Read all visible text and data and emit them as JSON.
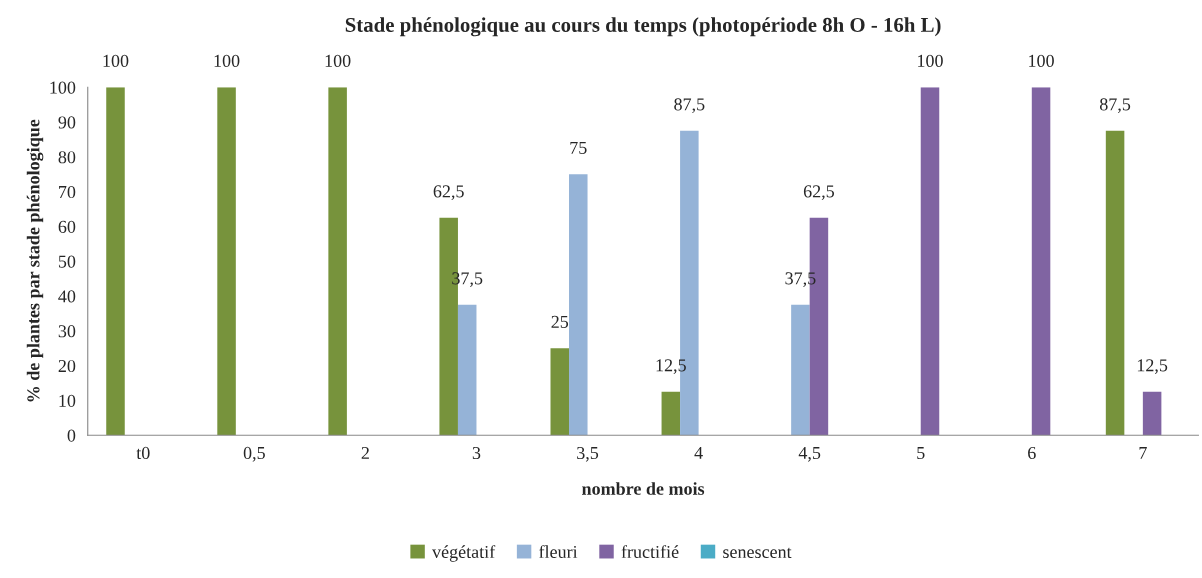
{
  "chart_data": {
    "type": "bar",
    "title": "Stade phénologique au cours du temps (photopériode 8h O - 16h L)",
    "xlabel": "nombre de mois",
    "ylabel": "% de plantes par stade phénologique",
    "categories": [
      "t0",
      "0,5",
      "2",
      "3",
      "3,5",
      "4",
      "4,5",
      "5",
      "6",
      "7"
    ],
    "series": [
      {
        "name": "végétatif",
        "color": "#77933c",
        "values": [
          100,
          100,
          100,
          62.5,
          25,
          12.5,
          null,
          null,
          null,
          87.5
        ],
        "value_labels": [
          "100",
          "100",
          "100",
          "62,5",
          "25",
          "12,5",
          null,
          null,
          null,
          "87,5"
        ]
      },
      {
        "name": "fleuri",
        "color": "#95b3d7",
        "values": [
          null,
          null,
          null,
          37.5,
          75,
          87.5,
          37.5,
          null,
          null,
          null
        ],
        "value_labels": [
          null,
          null,
          null,
          "37,5",
          "75",
          "87,5",
          "37,5",
          null,
          null,
          null
        ]
      },
      {
        "name": "fructifié",
        "color": "#8064a2",
        "values": [
          null,
          null,
          null,
          null,
          null,
          null,
          62.5,
          100,
          100,
          12.5
        ],
        "value_labels": [
          null,
          null,
          null,
          null,
          null,
          null,
          "62,5",
          "100",
          "100",
          "12,5"
        ]
      },
      {
        "name": "senescent",
        "color": "#4bacc6",
        "values": [
          null,
          null,
          null,
          null,
          null,
          null,
          null,
          null,
          null,
          null
        ]
      }
    ],
    "ylim": [
      0,
      100
    ],
    "yticks": [
      0,
      10,
      20,
      30,
      40,
      50,
      60,
      70,
      80,
      90,
      100
    ],
    "grid": false,
    "legend": "bottom"
  }
}
